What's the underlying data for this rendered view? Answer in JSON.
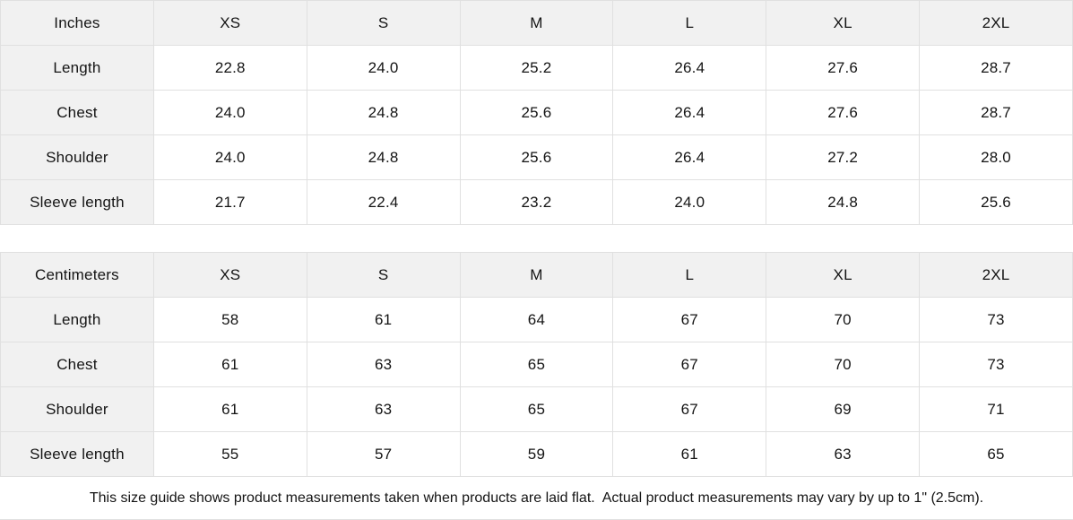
{
  "colors": {
    "header_background": "#f1f1f1",
    "border": "#e0e0e0",
    "text": "#141414",
    "background": "#ffffff"
  },
  "tables": [
    {
      "unit_label": "Inches",
      "size_headers": [
        "XS",
        "S",
        "M",
        "L",
        "XL",
        "2XL"
      ],
      "rows": [
        {
          "label": "Length",
          "values": [
            "22.8",
            "24.0",
            "25.2",
            "26.4",
            "27.6",
            "28.7"
          ]
        },
        {
          "label": "Chest",
          "values": [
            "24.0",
            "24.8",
            "25.6",
            "26.4",
            "27.6",
            "28.7"
          ]
        },
        {
          "label": "Shoulder",
          "values": [
            "24.0",
            "24.8",
            "25.6",
            "26.4",
            "27.2",
            "28.0"
          ]
        },
        {
          "label": "Sleeve length",
          "values": [
            "21.7",
            "22.4",
            "23.2",
            "24.0",
            "24.8",
            "25.6"
          ]
        }
      ]
    },
    {
      "unit_label": "Centimeters",
      "size_headers": [
        "XS",
        "S",
        "M",
        "L",
        "XL",
        "2XL"
      ],
      "rows": [
        {
          "label": "Length",
          "values": [
            "58",
            "61",
            "64",
            "67",
            "70",
            "73"
          ]
        },
        {
          "label": "Chest",
          "values": [
            "61",
            "63",
            "65",
            "67",
            "70",
            "73"
          ]
        },
        {
          "label": "Shoulder",
          "values": [
            "61",
            "63",
            "65",
            "67",
            "69",
            "71"
          ]
        },
        {
          "label": "Sleeve length",
          "values": [
            "55",
            "57",
            "59",
            "61",
            "63",
            "65"
          ]
        }
      ]
    }
  ],
  "footer_note": "This size guide shows product measurements taken when products are laid flat.  Actual product measurements may vary by up to 1\" (2.5cm)."
}
